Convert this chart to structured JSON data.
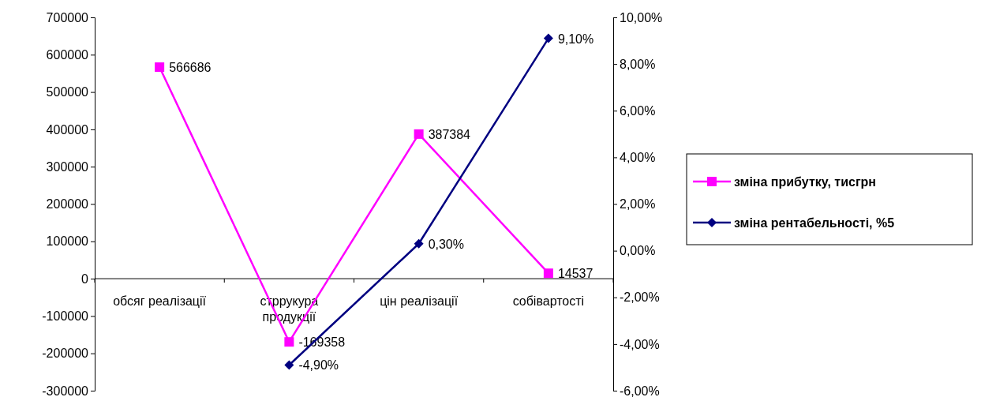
{
  "chart_data": {
    "type": "line",
    "categories": [
      "обсяг реалізації",
      "стррукура продукції",
      "цін реалізації",
      "собівартості"
    ],
    "ylim": [
      -300000,
      700000
    ],
    "yticks": [
      -300000,
      -200000,
      -100000,
      0,
      100000,
      200000,
      300000,
      400000,
      500000,
      600000,
      700000
    ],
    "y2lim": [
      -6,
      10
    ],
    "y2ticks": [
      {
        "value": -6,
        "label": "-6,00%"
      },
      {
        "value": -4,
        "label": "-4,00%"
      },
      {
        "value": -2,
        "label": "-2,00%"
      },
      {
        "value": 0,
        "label": "0,00%"
      },
      {
        "value": 2,
        "label": "2,00%"
      },
      {
        "value": 4,
        "label": "4,00%"
      },
      {
        "value": 6,
        "label": "6,00%"
      },
      {
        "value": 8,
        "label": "8,00%"
      },
      {
        "value": 10,
        "label": "10,00%"
      }
    ],
    "legend": "right",
    "grid": false,
    "series": [
      {
        "name": "зміна прибутку, тисгрн",
        "color": "#ff00ff",
        "marker": "square",
        "values": [
          566686,
          -169358,
          387384,
          14537
        ],
        "value_labels": [
          "566686",
          "-169358",
          "387384",
          "14537"
        ]
      },
      {
        "name": "зміна рентабельності, %5",
        "color": "#000080",
        "marker": "diamond",
        "axis": "y2",
        "values": [
          null,
          -4.9,
          0.3,
          9.1
        ],
        "value_labels": [
          null,
          "-4,90%",
          "0,30%",
          "9,10%"
        ]
      }
    ]
  }
}
